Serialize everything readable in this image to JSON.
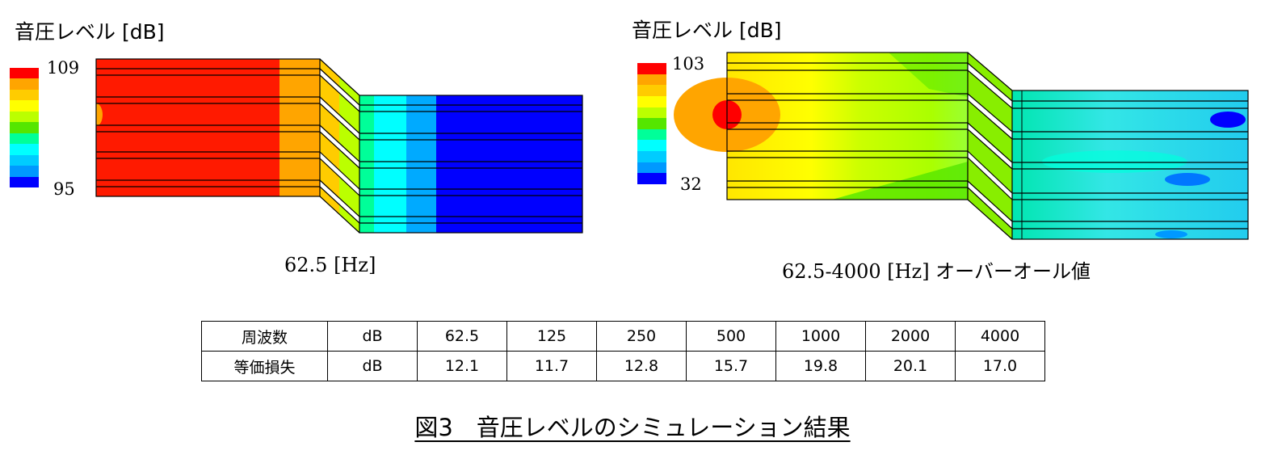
{
  "left_panel": {
    "legend_title": "音圧レベル [dB]",
    "legend_max": "109",
    "legend_min": "95",
    "caption": "62.5 [Hz]"
  },
  "right_panel": {
    "legend_title": "音圧レベル [dB]",
    "legend_max": "103",
    "legend_min": "32",
    "caption": "62.5-4000 [Hz] オーバーオール値"
  },
  "colormap": [
    "#ff0000",
    "#ffa500",
    "#ffcc00",
    "#ffff00",
    "#bbff00",
    "#55e600",
    "#00ff99",
    "#00ffff",
    "#00ccff",
    "#0099ff",
    "#0000ff"
  ],
  "table": {
    "rows": [
      [
        "周波数",
        "dB",
        "62.5",
        "125",
        "250",
        "500",
        "1000",
        "2000",
        "4000"
      ],
      [
        "等価損失",
        "dB",
        "12.1",
        "11.7",
        "12.8",
        "15.7",
        "19.8",
        "20.1",
        "17.0"
      ]
    ]
  },
  "figure_title": "図3　音圧レベルのシミュレーション結果"
}
